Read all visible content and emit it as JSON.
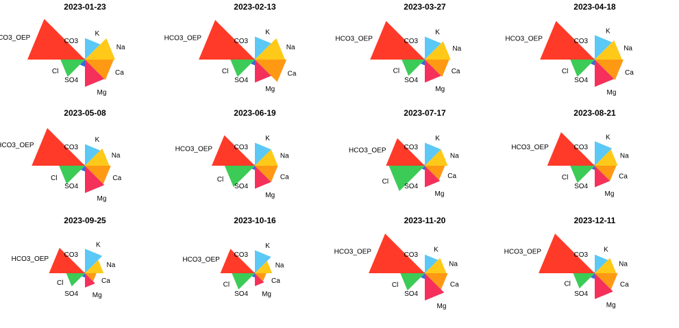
{
  "chart_data": {
    "type": "radial-wedge-small-multiples",
    "legend": "none",
    "grid": false,
    "axes": [
      "K",
      "Na",
      "Ca",
      "Mg",
      "SO4",
      "Cl",
      "HCO3_OEP",
      "CO3"
    ],
    "colors": {
      "K": "#5BC8F5",
      "Na": "#FFC91A",
      "Ca": "#FF9914",
      "Mg": "#F5305A",
      "SO4": "#2D6DE0",
      "Cl": "#3CCB57",
      "HCO3_OEP": "#FF3A28",
      "CO3": "#8A8A8A"
    },
    "panels": [
      {
        "title": "2023-01-23",
        "values": {
          "K": 1.5,
          "Na": 2.1,
          "Ca": 2.0,
          "Mg": 1.9,
          "SO4": 0.5,
          "Cl": 1.7,
          "HCO3_OEP": 4.0,
          "CO3": 0.1
        }
      },
      {
        "title": "2023-02-13",
        "values": {
          "K": 1.6,
          "Na": 2.1,
          "Ca": 2.2,
          "Mg": 1.6,
          "SO4": 0.4,
          "Cl": 1.7,
          "HCO3_OEP": 3.9,
          "CO3": 0.1
        }
      },
      {
        "title": "2023-03-27",
        "values": {
          "K": 1.6,
          "Na": 1.8,
          "Ca": 1.7,
          "Mg": 1.6,
          "SO4": 0.4,
          "Cl": 1.6,
          "HCO3_OEP": 3.8,
          "CO3": 0.1
        }
      },
      {
        "title": "2023-04-18",
        "values": {
          "K": 1.7,
          "Na": 1.9,
          "Ca": 2.0,
          "Mg": 1.9,
          "SO4": 0.4,
          "Cl": 1.7,
          "HCO3_OEP": 3.8,
          "CO3": 0.1
        }
      },
      {
        "title": "2023-05-08",
        "values": {
          "K": 1.5,
          "Na": 1.7,
          "Ca": 1.8,
          "Mg": 1.9,
          "SO4": 0.4,
          "Cl": 1.8,
          "HCO3_OEP": 3.7,
          "CO3": 0.1
        }
      },
      {
        "title": "2023-06-19",
        "values": {
          "K": 1.6,
          "Na": 1.6,
          "Ca": 1.6,
          "Mg": 1.6,
          "SO4": 0.3,
          "Cl": 2.1,
          "HCO3_OEP": 3.0,
          "CO3": 0.1
        }
      },
      {
        "title": "2023-07-17",
        "values": {
          "K": 1.6,
          "Na": 1.6,
          "Ca": 1.4,
          "Mg": 1.5,
          "SO4": 0.3,
          "Cl": 2.5,
          "HCO3_OEP": 2.7,
          "CO3": 0.1
        }
      },
      {
        "title": "2023-08-21",
        "values": {
          "K": 1.7,
          "Na": 1.6,
          "Ca": 1.5,
          "Mg": 1.5,
          "SO4": 0.3,
          "Cl": 1.7,
          "HCO3_OEP": 3.3,
          "CO3": 0.1
        }
      },
      {
        "title": "2023-09-25",
        "values": {
          "K": 1.7,
          "Na": 1.3,
          "Ca": 0.8,
          "Mg": 1.0,
          "SO4": 0.3,
          "Cl": 1.3,
          "HCO3_OEP": 2.5,
          "CO3": 0.1
        }
      },
      {
        "title": "2023-10-16",
        "values": {
          "K": 1.6,
          "Na": 1.2,
          "Ca": 0.8,
          "Mg": 0.9,
          "SO4": 0.3,
          "Cl": 1.6,
          "HCO3_OEP": 2.4,
          "CO3": 0.1
        }
      },
      {
        "title": "2023-11-20",
        "values": {
          "K": 1.3,
          "Na": 1.5,
          "Ca": 1.6,
          "Mg": 1.9,
          "SO4": 0.4,
          "Cl": 1.7,
          "HCO3_OEP": 3.9,
          "CO3": 0.1
        }
      },
      {
        "title": "2023-12-11",
        "values": {
          "K": 1.3,
          "Na": 1.5,
          "Ca": 1.6,
          "Mg": 1.8,
          "SO4": 0.4,
          "Cl": 1.5,
          "HCO3_OEP": 3.9,
          "CO3": 0.1
        }
      }
    ]
  }
}
